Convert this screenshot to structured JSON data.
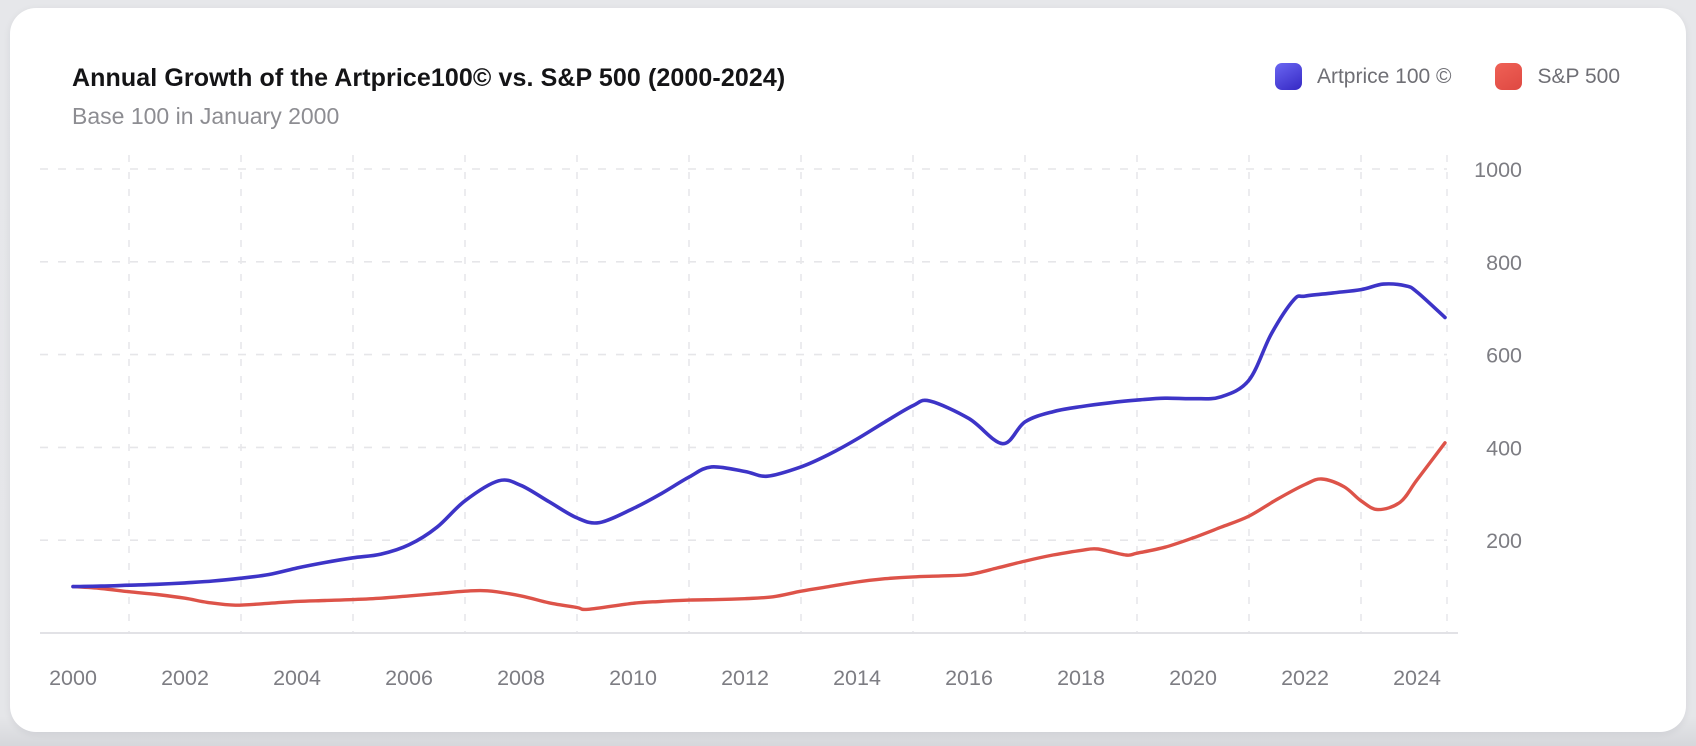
{
  "card": {
    "title": "Annual Growth of the Artprice100© vs. S&P 500 (2000-2024)",
    "subtitle": "Base 100 in January 2000"
  },
  "legend": [
    {
      "label": "Artprice 100 ©",
      "color": "#4a3fd6"
    },
    {
      "label": "S&P 500",
      "color": "#e8564c"
    }
  ],
  "chart_data": {
    "type": "line",
    "title": "Annual Growth of the Artprice100© vs. S&P 500 (2000-2024)",
    "subtitle": "Base 100 in January 2000",
    "xlabel": "",
    "ylabel": "",
    "xlim": [
      2000,
      2024.5
    ],
    "ylim": [
      0,
      1000
    ],
    "x_ticks": [
      2000,
      2002,
      2004,
      2006,
      2008,
      2010,
      2012,
      2014,
      2016,
      2018,
      2020,
      2022,
      2024
    ],
    "y_ticks": [
      200,
      400,
      600,
      800,
      1000
    ],
    "grid": "dashed",
    "legend_position": "top-right",
    "series": [
      {
        "name": "Artprice 100 ©",
        "color": "#3d34c7",
        "points": [
          [
            2000,
            100
          ],
          [
            2000.5,
            101
          ],
          [
            2001,
            103
          ],
          [
            2001.5,
            105
          ],
          [
            2002,
            108
          ],
          [
            2002.5,
            112
          ],
          [
            2003,
            118
          ],
          [
            2003.5,
            126
          ],
          [
            2004,
            140
          ],
          [
            2004.5,
            152
          ],
          [
            2005,
            162
          ],
          [
            2005.5,
            170
          ],
          [
            2006,
            190
          ],
          [
            2006.5,
            228
          ],
          [
            2007,
            285
          ],
          [
            2007.6,
            328
          ],
          [
            2008,
            318
          ],
          [
            2008.5,
            283
          ],
          [
            2009,
            248
          ],
          [
            2009.4,
            238
          ],
          [
            2010,
            268
          ],
          [
            2010.5,
            300
          ],
          [
            2011,
            336
          ],
          [
            2011.4,
            358
          ],
          [
            2012,
            348
          ],
          [
            2012.4,
            338
          ],
          [
            2013,
            358
          ],
          [
            2013.5,
            385
          ],
          [
            2014,
            418
          ],
          [
            2014.5,
            455
          ],
          [
            2015,
            490
          ],
          [
            2015.3,
            500
          ],
          [
            2016,
            462
          ],
          [
            2016.6,
            408
          ],
          [
            2017,
            455
          ],
          [
            2017.5,
            477
          ],
          [
            2018,
            488
          ],
          [
            2018.5,
            496
          ],
          [
            2019,
            502
          ],
          [
            2019.5,
            506
          ],
          [
            2020,
            505
          ],
          [
            2020.5,
            509
          ],
          [
            2021,
            545
          ],
          [
            2021.4,
            645
          ],
          [
            2021.8,
            718
          ],
          [
            2022,
            726
          ],
          [
            2022.5,
            733
          ],
          [
            2023,
            740
          ],
          [
            2023.4,
            752
          ],
          [
            2023.8,
            748
          ],
          [
            2024,
            735
          ],
          [
            2024.5,
            680
          ]
        ]
      },
      {
        "name": "S&P 500",
        "color": "#dd5349",
        "points": [
          [
            2000,
            100
          ],
          [
            2000.5,
            96
          ],
          [
            2001,
            89
          ],
          [
            2001.5,
            83
          ],
          [
            2002,
            75
          ],
          [
            2002.4,
            66
          ],
          [
            2002.9,
            60
          ],
          [
            2003.5,
            64
          ],
          [
            2004,
            68
          ],
          [
            2004.5,
            70
          ],
          [
            2005,
            72
          ],
          [
            2005.5,
            75
          ],
          [
            2006,
            80
          ],
          [
            2006.5,
            85
          ],
          [
            2007,
            90
          ],
          [
            2007.4,
            91
          ],
          [
            2008,
            80
          ],
          [
            2008.5,
            65
          ],
          [
            2009,
            55
          ],
          [
            2009.2,
            51
          ],
          [
            2010,
            64
          ],
          [
            2010.5,
            68
          ],
          [
            2011,
            71
          ],
          [
            2011.5,
            72
          ],
          [
            2012,
            74
          ],
          [
            2012.5,
            78
          ],
          [
            2013,
            90
          ],
          [
            2013.5,
            100
          ],
          [
            2014,
            110
          ],
          [
            2014.5,
            117
          ],
          [
            2015,
            121
          ],
          [
            2015.5,
            123
          ],
          [
            2016,
            126
          ],
          [
            2016.5,
            140
          ],
          [
            2017,
            155
          ],
          [
            2017.5,
            168
          ],
          [
            2018,
            178
          ],
          [
            2018.3,
            181
          ],
          [
            2018.8,
            168
          ],
          [
            2019,
            172
          ],
          [
            2019.5,
            185
          ],
          [
            2020,
            205
          ],
          [
            2020.5,
            228
          ],
          [
            2021,
            252
          ],
          [
            2021.5,
            288
          ],
          [
            2022,
            320
          ],
          [
            2022.3,
            332
          ],
          [
            2022.7,
            315
          ],
          [
            2023,
            285
          ],
          [
            2023.3,
            266
          ],
          [
            2023.7,
            282
          ],
          [
            2024,
            330
          ],
          [
            2024.5,
            410
          ]
        ]
      }
    ]
  }
}
